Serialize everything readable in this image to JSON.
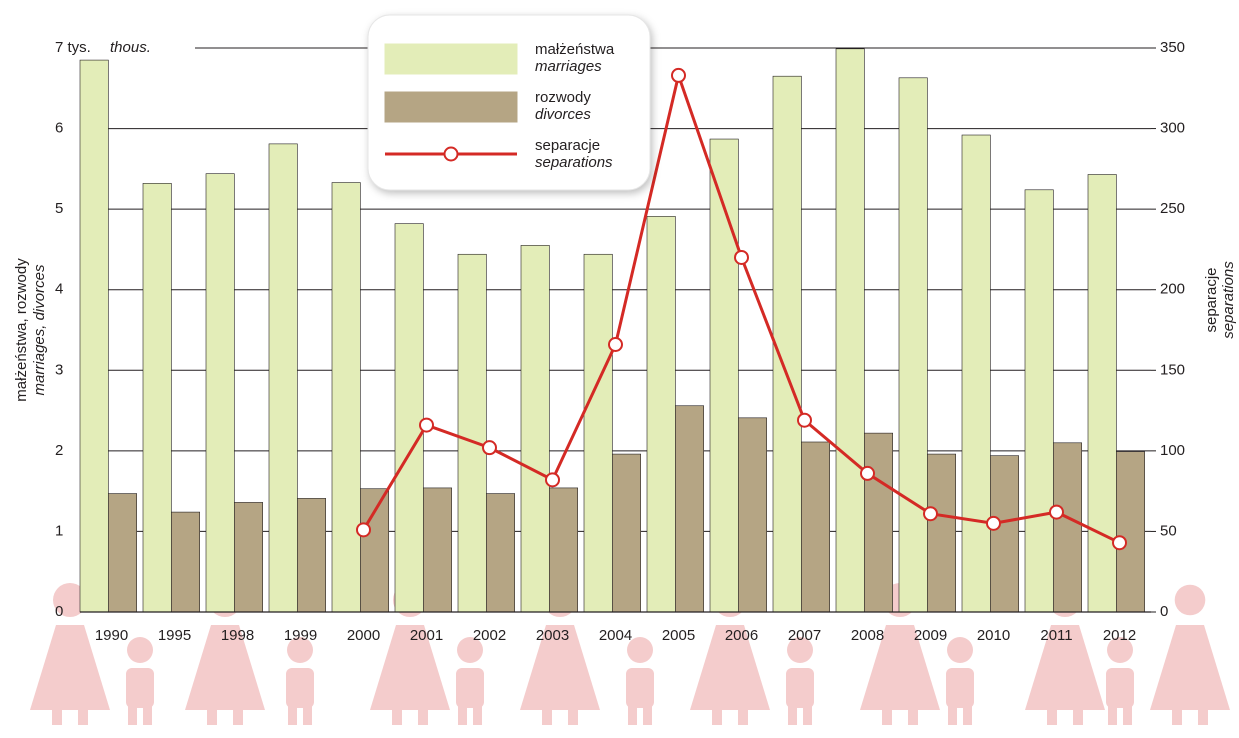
{
  "chart_data": {
    "type": "bar_line",
    "y_unit": "thous.",
    "ylabel": [
      "małżeństwa, rozwody",
      "marriages, divorces"
    ],
    "y2label": [
      "separacje",
      "separations"
    ],
    "categories": [
      "1990",
      "1995",
      "1998",
      "1999",
      "2000",
      "2001",
      "2002",
      "2003",
      "2004",
      "2005",
      "2006",
      "2007",
      "2008",
      "2009",
      "2010",
      "2011",
      "2012"
    ],
    "series": [
      {
        "name": "małżeństwa",
        "name_en": "marriages",
        "kind": "bar",
        "color": "#e3edb8",
        "values": [
          6.85,
          5.32,
          5.44,
          5.81,
          5.33,
          4.82,
          4.44,
          4.55,
          4.44,
          4.91,
          5.87,
          6.65,
          6.99,
          6.63,
          5.92,
          5.24,
          5.43
        ]
      },
      {
        "name": "rozwody",
        "name_en": "divorces",
        "kind": "bar",
        "color": "#b5a584",
        "values": [
          1.47,
          1.24,
          1.36,
          1.41,
          1.53,
          1.54,
          1.47,
          1.54,
          1.96,
          2.56,
          2.41,
          2.11,
          2.22,
          1.96,
          1.94,
          2.1,
          1.99
        ]
      },
      {
        "name": "separacje",
        "name_en": "separations",
        "kind": "line",
        "axis": "y2",
        "color": "#d42a25",
        "values": [
          null,
          null,
          null,
          null,
          51,
          116,
          102,
          82,
          166,
          333,
          220,
          119,
          86,
          61,
          55,
          62,
          43
        ]
      }
    ],
    "ylim": [
      0,
      7
    ],
    "yticks": [
      0,
      1,
      2,
      3,
      4,
      5,
      6,
      {
        "value": 7,
        "label": "7 tys."
      }
    ],
    "y2lim": [
      0,
      350
    ],
    "y2ticks": [
      0,
      50,
      100,
      150,
      200,
      250,
      300,
      350
    ],
    "grid": true
  }
}
